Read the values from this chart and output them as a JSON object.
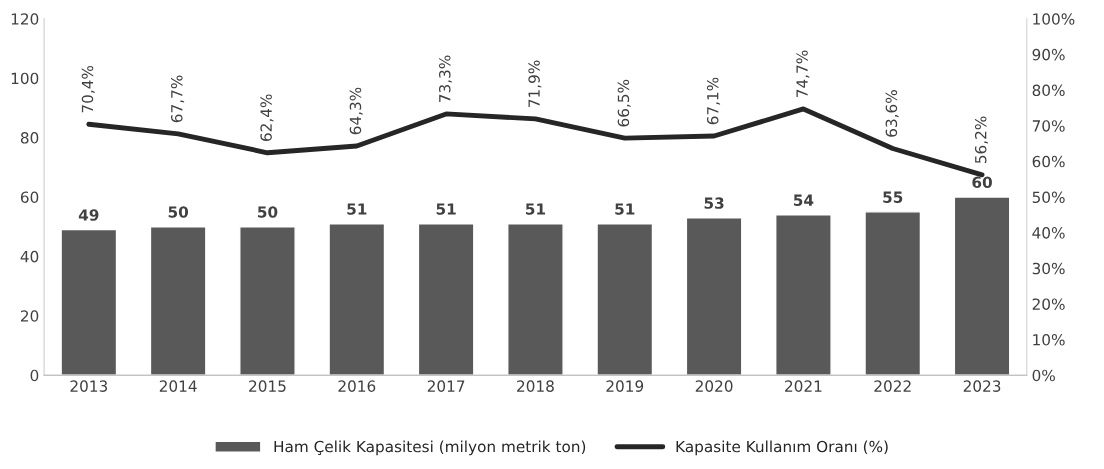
{
  "chart_data": {
    "type": "bar",
    "categories": [
      "2013",
      "2014",
      "2015",
      "2016",
      "2017",
      "2018",
      "2019",
      "2020",
      "2021",
      "2022",
      "2023"
    ],
    "series": [
      {
        "name": "Ham Çelik Kapasitesi (milyon metrik ton)",
        "color": "#595959",
        "values": [
          49,
          50,
          50,
          51,
          51,
          51,
          51,
          53,
          54,
          55,
          60
        ],
        "value_labels": [
          "49",
          "50",
          "50",
          "51",
          "51",
          "51",
          "51",
          "53",
          "54",
          "55",
          "60"
        ]
      },
      {
        "name": "Kapasite Kullanım Oranı (%)",
        "type": "line",
        "axis": "y2",
        "color": "#262626",
        "values": [
          70.4,
          67.7,
          62.4,
          64.3,
          73.3,
          71.9,
          66.5,
          67.1,
          74.7,
          63.6,
          56.2
        ],
        "value_labels": [
          "70,4%",
          "67,7%",
          "62,4%",
          "64,3%",
          "73,3%",
          "71,9%",
          "66,5%",
          "67,1%",
          "74,7%",
          "63,6%",
          "56,2%"
        ]
      }
    ],
    "ylim": [
      0,
      120
    ],
    "yticks": [
      0,
      20,
      40,
      60,
      80,
      100,
      120
    ],
    "y2lim": [
      0,
      100
    ],
    "y2ticks": [
      {
        "value": 0,
        "label": "0%"
      },
      {
        "value": 10,
        "label": "10%"
      },
      {
        "value": 20,
        "label": "20%"
      },
      {
        "value": 30,
        "label": "30%"
      },
      {
        "value": 40,
        "label": "40%"
      },
      {
        "value": 50,
        "label": "50%"
      },
      {
        "value": 60,
        "label": "60%"
      },
      {
        "value": 70,
        "label": "70%"
      },
      {
        "value": 80,
        "label": "80%"
      },
      {
        "value": 90,
        "label": "90%"
      },
      {
        "value": 100,
        "label": "100%"
      }
    ],
    "grid": false,
    "legend": "bottom",
    "marker": "none",
    "line_style": "solid"
  }
}
